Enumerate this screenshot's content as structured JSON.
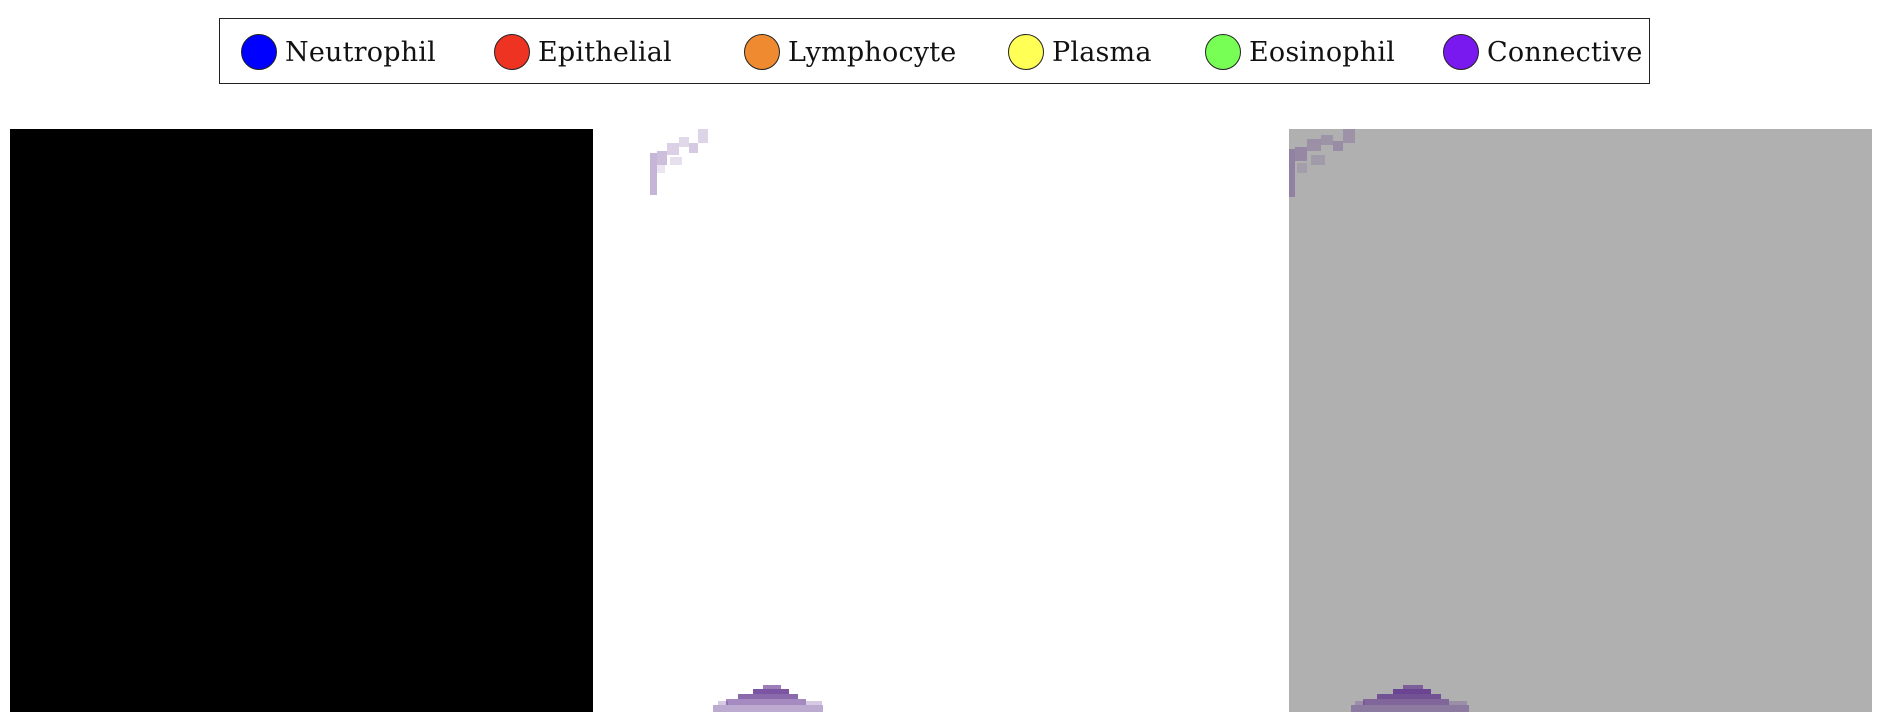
{
  "legend": {
    "items": [
      {
        "label": "Neutrophil",
        "color": "#0000ff"
      },
      {
        "label": "Epithelial",
        "color": "#ee3322"
      },
      {
        "label": "Lymphocyte",
        "color": "#f08a30"
      },
      {
        "label": "Plasma",
        "color": "#ffff55"
      },
      {
        "label": "Eosinophil",
        "color": "#77ff55"
      },
      {
        "label": "Connective",
        "color": "#7a18f0"
      }
    ]
  },
  "panels": [
    {
      "background": "#000000"
    },
    {
      "background": "#ffffff"
    },
    {
      "background": "#b0b0b0"
    }
  ],
  "stain_color": "#5a2a8a"
}
